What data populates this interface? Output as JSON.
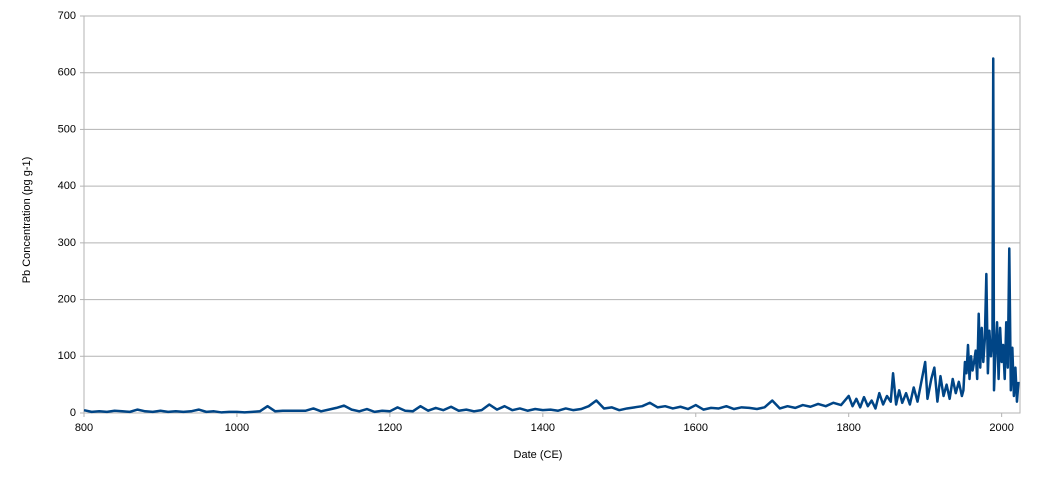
{
  "chart_data": {
    "type": "line",
    "xlabel": "Date (CE)",
    "ylabel": "Pb Concentration (pg g-1)",
    "xlim": [
      800,
      2024
    ],
    "xticks": [
      800,
      1000,
      1200,
      1400,
      1600,
      1800,
      2000
    ],
    "ylim": [
      0,
      700
    ],
    "yticks": [
      0,
      100,
      200,
      300,
      400,
      500,
      600,
      700
    ],
    "grid": true,
    "x": [
      800,
      810,
      820,
      830,
      840,
      850,
      860,
      870,
      880,
      890,
      900,
      910,
      920,
      930,
      940,
      950,
      960,
      970,
      980,
      990,
      1000,
      1010,
      1020,
      1030,
      1040,
      1050,
      1060,
      1070,
      1080,
      1090,
      1100,
      1110,
      1120,
      1130,
      1140,
      1150,
      1160,
      1170,
      1180,
      1190,
      1200,
      1210,
      1220,
      1230,
      1240,
      1250,
      1260,
      1270,
      1280,
      1290,
      1300,
      1310,
      1320,
      1330,
      1340,
      1350,
      1360,
      1370,
      1380,
      1390,
      1400,
      1410,
      1420,
      1430,
      1440,
      1450,
      1460,
      1470,
      1480,
      1490,
      1500,
      1510,
      1520,
      1530,
      1540,
      1550,
      1560,
      1570,
      1580,
      1590,
      1600,
      1610,
      1620,
      1630,
      1640,
      1650,
      1660,
      1670,
      1680,
      1690,
      1700,
      1710,
      1720,
      1730,
      1740,
      1750,
      1760,
      1770,
      1780,
      1790,
      1800,
      1805,
      1810,
      1815,
      1820,
      1825,
      1830,
      1835,
      1840,
      1845,
      1850,
      1855,
      1858,
      1862,
      1866,
      1870,
      1875,
      1880,
      1885,
      1890,
      1895,
      1900,
      1903,
      1908,
      1912,
      1916,
      1920,
      1924,
      1928,
      1932,
      1936,
      1940,
      1944,
      1948,
      1950,
      1952,
      1954,
      1956,
      1958,
      1960,
      1962,
      1964,
      1966,
      1968,
      1970,
      1972,
      1974,
      1976,
      1978,
      1980,
      1982,
      1984,
      1986,
      1988,
      1989,
      1990,
      1992,
      1994,
      1996,
      1998,
      2000,
      2002,
      2004,
      2006,
      2008,
      2010,
      2012,
      2014,
      2016,
      2018,
      2020,
      2022
    ],
    "series": [
      {
        "name": "Pb",
        "color": "#004586",
        "values": [
          5,
          2,
          3,
          2,
          4,
          3,
          2,
          6,
          3,
          2,
          4,
          2,
          3,
          2,
          3,
          6,
          2,
          3,
          1,
          2,
          2,
          1,
          2,
          3,
          12,
          3,
          4,
          4,
          4,
          4,
          8,
          3,
          6,
          9,
          13,
          6,
          3,
          7,
          2,
          4,
          3,
          10,
          4,
          3,
          12,
          4,
          9,
          5,
          11,
          4,
          6,
          3,
          5,
          15,
          6,
          12,
          5,
          8,
          4,
          7,
          5,
          6,
          4,
          8,
          5,
          7,
          12,
          22,
          8,
          10,
          5,
          8,
          10,
          12,
          18,
          10,
          12,
          8,
          11,
          7,
          14,
          6,
          9,
          8,
          12,
          7,
          10,
          9,
          7,
          10,
          22,
          8,
          12,
          9,
          14,
          11,
          16,
          12,
          18,
          14,
          30,
          12,
          25,
          10,
          28,
          12,
          22,
          8,
          35,
          15,
          30,
          20,
          70,
          15,
          40,
          18,
          35,
          15,
          45,
          20,
          55,
          90,
          25,
          60,
          80,
          20,
          65,
          30,
          50,
          25,
          60,
          35,
          55,
          30,
          40,
          90,
          70,
          120,
          60,
          100,
          75,
          90,
          110,
          60,
          175,
          80,
          150,
          90,
          130,
          245,
          70,
          145,
          100,
          130,
          625,
          40,
          110,
          160,
          60,
          150,
          90,
          120,
          60,
          160,
          80,
          290,
          40,
          115,
          30,
          80,
          20,
          55
        ]
      }
    ]
  }
}
